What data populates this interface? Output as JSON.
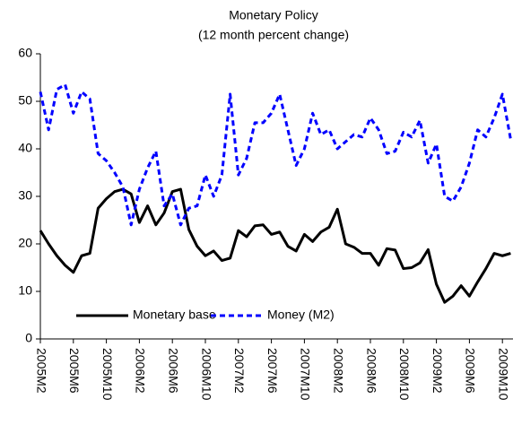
{
  "chart_data": {
    "type": "line",
    "title": "Monetary Policy",
    "subtitle": "(12 month percent change)",
    "categories": [
      "2005M2",
      null,
      null,
      null,
      "2005M6",
      null,
      null,
      null,
      "2005M10",
      null,
      null,
      null,
      "2006M2",
      null,
      null,
      null,
      "2006M6",
      null,
      null,
      null,
      "2006M10",
      null,
      null,
      null,
      "2007M2",
      null,
      null,
      null,
      "2007M6",
      null,
      null,
      null,
      "2007M10",
      null,
      null,
      null,
      "2008M2",
      null,
      null,
      null,
      "2008M6",
      null,
      null,
      null,
      "2008M10",
      null,
      null,
      null,
      "2009M2",
      null,
      null,
      null,
      "2009M6",
      null,
      null,
      null,
      "2009M10",
      null
    ],
    "series": [
      {
        "name": "Monetary base",
        "color": "#000000",
        "dashed": false,
        "values": [
          22.8,
          20,
          17.5,
          15.5,
          14,
          17.5,
          18,
          27.5,
          29.5,
          31,
          31.5,
          30.5,
          24.5,
          28,
          24,
          26.5,
          31,
          31.5,
          23,
          19.5,
          17.5,
          18.5,
          16.5,
          17,
          22.8,
          21.5,
          23.8,
          24,
          22,
          22.5,
          19.5,
          18.5,
          22,
          20.5,
          22.5,
          23.5,
          27.3,
          20,
          19.3,
          18,
          18,
          15.5,
          19,
          18.7,
          14.8,
          15,
          16,
          18.8,
          11.5,
          7.7,
          9,
          11.2,
          9,
          12,
          14.8,
          18,
          17.5,
          18
        ]
      },
      {
        "name": "Money (M2)",
        "color": "#0000ff",
        "dashed": true,
        "values": [
          52,
          44,
          52.5,
          53.5,
          47.5,
          52,
          50.5,
          39,
          37.5,
          35,
          32,
          24,
          31.5,
          36,
          39.5,
          28,
          30.5,
          24,
          27.5,
          28,
          34.5,
          30,
          34.5,
          51.5,
          34.5,
          38,
          45.5,
          45.5,
          47.5,
          51.5,
          44,
          36.5,
          40,
          47.5,
          43,
          44,
          40,
          41.5,
          43,
          42.5,
          46.5,
          44,
          39,
          39.5,
          43.5,
          42.5,
          46,
          37,
          41,
          30,
          29,
          32,
          37,
          44,
          42.5,
          46.5,
          51.5,
          42
        ]
      }
    ],
    "ylim": [
      0,
      60
    ],
    "yticks": [
      0,
      10,
      20,
      30,
      40,
      50,
      60
    ],
    "grid": false
  }
}
